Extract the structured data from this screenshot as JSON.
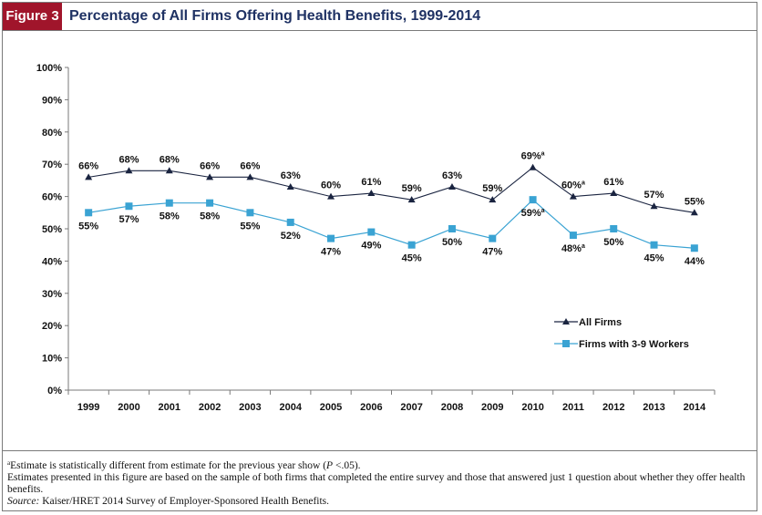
{
  "figure": {
    "label": "Figure 3",
    "title": "Percentage of All Firms Offering Health Benefits, 1999-2014"
  },
  "chart_data": {
    "type": "line",
    "title": "Percentage of All Firms Offering Health Benefits, 1999-2014",
    "xlabel": "",
    "ylabel": "",
    "ylim": [
      0,
      100
    ],
    "y_ticks": [
      "0%",
      "10%",
      "20%",
      "30%",
      "40%",
      "50%",
      "60%",
      "70%",
      "80%",
      "90%",
      "100%"
    ],
    "categories": [
      "1999",
      "2000",
      "2001",
      "2002",
      "2003",
      "2004",
      "2005",
      "2006",
      "2007",
      "2008",
      "2009",
      "2010",
      "2011",
      "2012",
      "2013",
      "2014"
    ],
    "grid": false,
    "legend_position": "right",
    "series": [
      {
        "name": "All Firms",
        "marker": "triangle",
        "color": "#1a2440",
        "values": [
          66,
          68,
          68,
          66,
          66,
          63,
          60,
          61,
          59,
          63,
          59,
          69,
          60,
          61,
          57,
          55
        ],
        "labels": [
          "66%",
          "68%",
          "68%",
          "66%",
          "66%",
          "63%",
          "60%",
          "61%",
          "59%",
          "63%",
          "59%",
          "69%",
          "60%",
          "61%",
          "57%",
          "55%"
        ],
        "significant": [
          false,
          false,
          false,
          false,
          false,
          false,
          false,
          false,
          false,
          false,
          false,
          true,
          true,
          false,
          false,
          false
        ]
      },
      {
        "name": "Firms with 3-9 Workers",
        "marker": "square",
        "color": "#3aa3d3",
        "values": [
          55,
          57,
          58,
          58,
          55,
          52,
          47,
          49,
          45,
          50,
          47,
          59,
          48,
          50,
          45,
          44
        ],
        "labels": [
          "55%",
          "57%",
          "58%",
          "58%",
          "55%",
          "52%",
          "47%",
          "49%",
          "45%",
          "50%",
          "47%",
          "59%",
          "48%",
          "50%",
          "45%",
          "44%"
        ],
        "significant": [
          false,
          false,
          false,
          false,
          false,
          false,
          false,
          false,
          false,
          false,
          false,
          true,
          true,
          false,
          false,
          false
        ]
      }
    ],
    "significance_marker": "a"
  },
  "notes": {
    "footnote_marker": "a",
    "footnote": "Estimate is statistically different from estimate for the previous year show (",
    "footnote_p": "P",
    "footnote_end": " <.05).",
    "line2": "Estimates presented in this figure are based on the sample of both firms that completed the entire survey and those that answered just 1 question about whether they offer health benefits.",
    "source_label": "Source:",
    "source_text": " Kaiser/HRET 2014 Survey of Employer-Sponsored Health Benefits."
  }
}
